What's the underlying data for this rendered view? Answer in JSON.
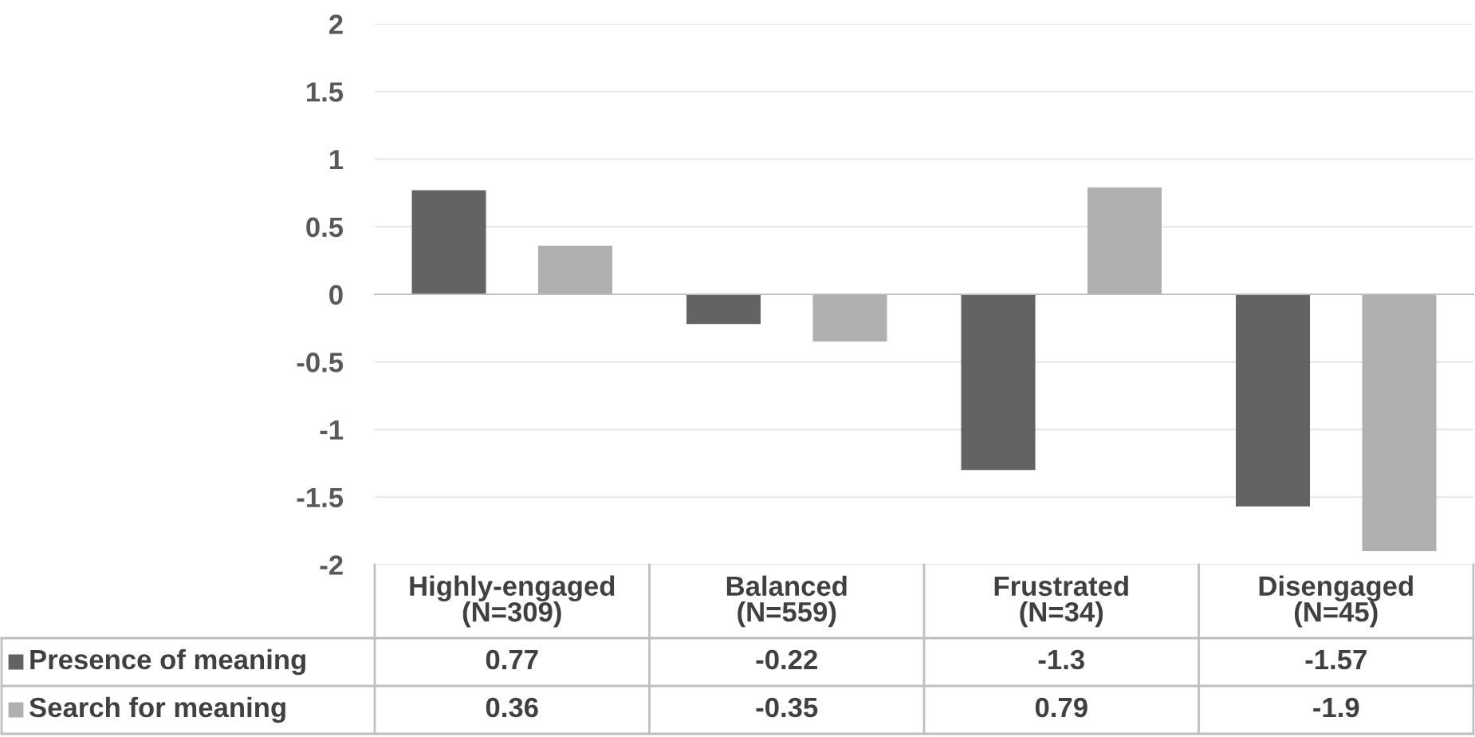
{
  "chart_data": {
    "type": "bar",
    "categories": [
      "Highly-engaged\n(N=309)",
      "Balanced\n(N=559)",
      "Frustrated\n(N=34)",
      "Disengaged\n(N=45)"
    ],
    "series": [
      {
        "name": "Presence of meaning",
        "color": "#636363",
        "values": [
          0.77,
          -0.22,
          -1.3,
          -1.57
        ]
      },
      {
        "name": "Search for meaning",
        "color": "#b0b0b0",
        "values": [
          0.36,
          -0.35,
          0.79,
          -1.9
        ]
      }
    ],
    "ylim": [
      -2,
      2
    ],
    "yticks": [
      2,
      1.5,
      1,
      0.5,
      0,
      -0.5,
      -1,
      -1.5,
      -2
    ],
    "grid": "y",
    "legend": "bottom",
    "data_labels": true
  }
}
